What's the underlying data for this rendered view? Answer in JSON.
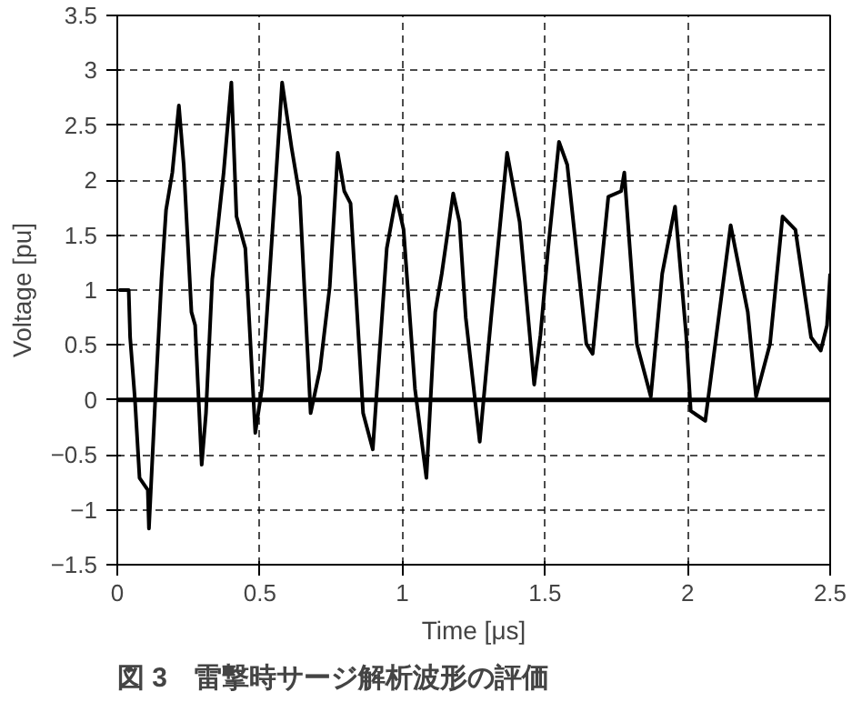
{
  "chart_data": {
    "type": "line",
    "xlabel": "Time [μs]",
    "ylabel": "Voltage [pu]",
    "xlim": [
      0,
      2.5
    ],
    "xticks": [
      0,
      0.5,
      1,
      1.5,
      2,
      2.5
    ],
    "ylim": [
      -1.5,
      3.5
    ],
    "yticks": [
      -1.5,
      -1,
      -0.5,
      0,
      0.5,
      1,
      1.5,
      2,
      2.5,
      3,
      3.5
    ],
    "grid": true,
    "marker": "none",
    "line_style": "solid",
    "ref_lines": [
      {
        "axis": "y",
        "value": 0,
        "label": null,
        "color": "#000000"
      }
    ],
    "annotations": [
      "図 3　雷撃時サージ解析波形の評価"
    ],
    "series": [
      {
        "color": "#000000",
        "x": [
          0.005,
          0.04,
          0.045,
          0.062,
          0.078,
          0.107,
          0.111,
          0.133,
          0.155,
          0.171,
          0.193,
          0.216,
          0.233,
          0.26,
          0.273,
          0.296,
          0.311,
          0.333,
          0.373,
          0.4,
          0.418,
          0.449,
          0.484,
          0.507,
          0.533,
          0.578,
          0.611,
          0.64,
          0.678,
          0.711,
          0.745,
          0.773,
          0.796,
          0.818,
          0.862,
          0.896,
          0.945,
          0.978,
          1.004,
          1.044,
          1.084,
          1.115,
          1.138,
          1.178,
          1.2,
          1.222,
          1.271,
          1.311,
          1.367,
          1.411,
          1.462,
          1.484,
          1.511,
          1.549,
          1.578,
          1.645,
          1.667,
          1.722,
          1.767,
          1.778,
          1.822,
          1.871,
          1.911,
          1.956,
          1.995,
          2.011,
          2.062,
          2.1,
          2.151,
          2.211,
          2.24,
          2.289,
          2.333,
          2.378,
          2.433,
          2.467,
          2.489,
          2.5
        ],
        "values": [
          1.0,
          1.0,
          0.57,
          0,
          -0.71,
          -0.82,
          -1.17,
          0,
          1.1,
          1.73,
          2.07,
          2.68,
          2.14,
          0.8,
          0.68,
          -0.59,
          -0.12,
          1.1,
          2.07,
          2.89,
          1.67,
          1.38,
          -0.3,
          0.1,
          1.1,
          2.89,
          2.3,
          1.85,
          -0.12,
          0.28,
          1.03,
          2.25,
          1.9,
          1.79,
          -0.12,
          -0.45,
          1.38,
          1.85,
          1.55,
          0.1,
          -0.71,
          0.8,
          1.15,
          1.88,
          1.62,
          0.75,
          -0.38,
          0.75,
          2.25,
          1.62,
          0.14,
          0.59,
          1.38,
          2.35,
          2.14,
          0.51,
          0.42,
          1.85,
          1.9,
          2.07,
          0.51,
          0.03,
          1.15,
          1.76,
          0.59,
          -0.1,
          -0.19,
          0.57,
          1.59,
          0.8,
          0.03,
          0.51,
          1.67,
          1.55,
          0.57,
          0.45,
          0.68,
          1.15
        ]
      }
    ]
  }
}
